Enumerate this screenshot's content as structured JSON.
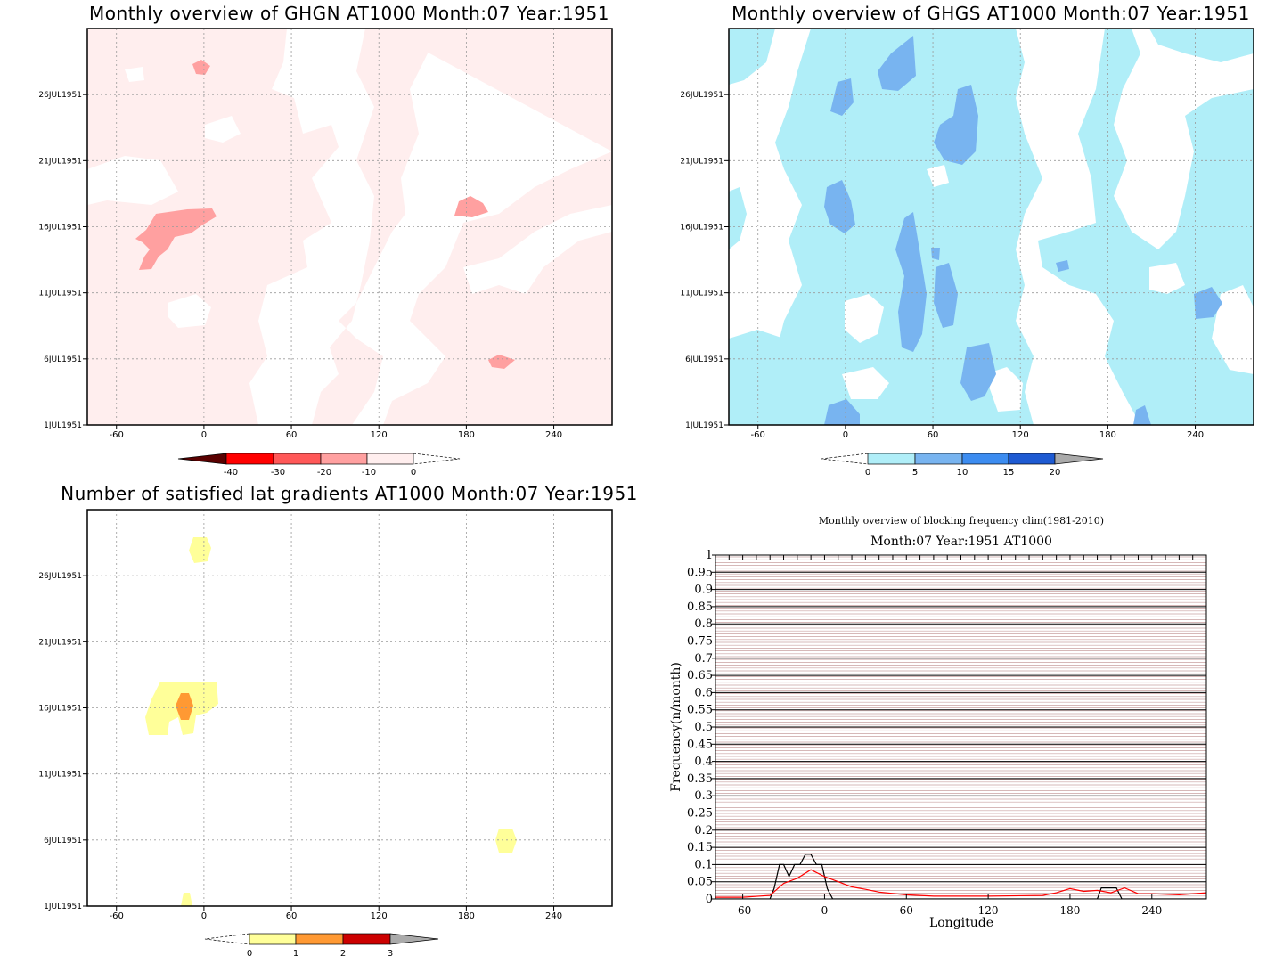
{
  "colors": {
    "red_fill_light": "#ffeeee",
    "red_fill_mid": "#ffa0a0",
    "red_1": "#ff5858",
    "red_2": "#ff0000",
    "red_dark": "#5a0000",
    "blue_1": "#b0eef8",
    "blue_2": "#78b4f0",
    "blue_3": "#3c8cf0",
    "blue_4": "#1e5ad2",
    "yellow": "#ffff99",
    "orange": "#ff9933",
    "darkred": "#cc0000",
    "gray": "#aaaaaa",
    "stripe_red": "#c8a0a0",
    "line_black": "#000000",
    "line_red": "#ff0000"
  },
  "panels": [
    {
      "title": "Monthly overview of GHGN AT1000 Month:07 Year:1951",
      "x_ticks": [
        "-60",
        "0",
        "60",
        "120",
        "180",
        "240"
      ],
      "y_ticks": [
        "1JUL1951",
        "6JUL1951",
        "11JUL1951",
        "16JUL1951",
        "21JUL1951",
        "26JUL1951"
      ],
      "colorbar": {
        "labels": [
          "-40",
          "-30",
          "-20",
          "-10",
          "0"
        ]
      }
    },
    {
      "title": "Monthly overview of GHGS AT1000 Month:07 Year:1951",
      "x_ticks": [
        "-60",
        "0",
        "60",
        "120",
        "180",
        "240"
      ],
      "y_ticks": [
        "1JUL1951",
        "6JUL1951",
        "11JUL1951",
        "16JUL1951",
        "21JUL1951",
        "26JUL1951"
      ],
      "colorbar": {
        "labels": [
          "0",
          "5",
          "10",
          "15",
          "20"
        ]
      }
    },
    {
      "title": "Number of satisfied lat gradients AT1000 Month:07 Year:1951",
      "x_ticks": [
        "-60",
        "0",
        "60",
        "120",
        "180",
        "240"
      ],
      "y_ticks": [
        "1JUL1951",
        "6JUL1951",
        "11JUL1951",
        "16JUL1951",
        "21JUL1951",
        "26JUL1951"
      ],
      "colorbar": {
        "labels": [
          "0",
          "1",
          "2",
          "3"
        ]
      }
    }
  ],
  "chart_data": {
    "type": "line",
    "title": "Monthly overview of blocking frequency clim(1981-2010)",
    "subtitle": "Month:07 Year:1951  AT1000",
    "xlabel": "Longitude",
    "ylabel": "Frequency(n/month)",
    "x_ticks": [
      "-60",
      "0",
      "60",
      "120",
      "180",
      "240"
    ],
    "y_ticks": [
      "0",
      "0.05",
      "0.1",
      "0.15",
      "0.2",
      "0.25",
      "0.3",
      "0.35",
      "0.4",
      "0.45",
      "0.5",
      "0.55",
      "0.6",
      "0.65",
      "0.7",
      "0.75",
      "0.8",
      "0.85",
      "0.9",
      "0.95",
      "1"
    ],
    "xlim": [
      -80,
      280
    ],
    "ylim": [
      0,
      1
    ],
    "series": [
      {
        "color": "#000000",
        "x": [
          -80,
          -40,
          -37,
          -33,
          -30,
          -26,
          -22,
          -18,
          -14,
          -10,
          -6,
          -2,
          2,
          6,
          10,
          200,
          203,
          206,
          210,
          214,
          218,
          280
        ],
        "values": [
          0,
          0,
          0.03,
          0.1,
          0.1,
          0.065,
          0.1,
          0.1,
          0.13,
          0.13,
          0.1,
          0.1,
          0.03,
          0,
          0,
          0,
          0.032,
          0.032,
          0.032,
          0.032,
          0,
          0
        ]
      },
      {
        "color": "#ff0000",
        "x": [
          -80,
          -60,
          -40,
          -30,
          -20,
          -10,
          0,
          10,
          20,
          30,
          40,
          60,
          80,
          120,
          160,
          170,
          180,
          190,
          200,
          210,
          220,
          230,
          240,
          260,
          280
        ],
        "values": [
          0.005,
          0.005,
          0.01,
          0.045,
          0.06,
          0.085,
          0.065,
          0.05,
          0.035,
          0.028,
          0.02,
          0.012,
          0.008,
          0.008,
          0.01,
          0.018,
          0.03,
          0.022,
          0.025,
          0.018,
          0.032,
          0.015,
          0.015,
          0.012,
          0.018
        ]
      }
    ]
  }
}
